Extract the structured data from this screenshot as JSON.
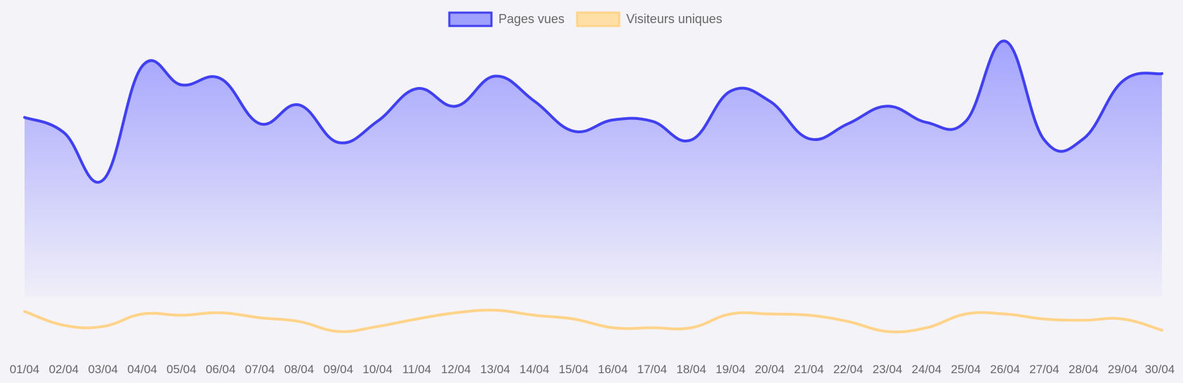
{
  "chart_data": {
    "type": "area",
    "categories": [
      "01/04",
      "02/04",
      "03/04",
      "04/04",
      "05/04",
      "06/04",
      "07/04",
      "08/04",
      "09/04",
      "10/04",
      "11/04",
      "12/04",
      "13/04",
      "14/04",
      "15/04",
      "16/04",
      "17/04",
      "18/04",
      "19/04",
      "20/04",
      "21/04",
      "22/04",
      "23/04",
      "24/04",
      "25/04",
      "26/04",
      "27/04",
      "28/04",
      "29/04",
      "30/04"
    ],
    "series": [
      {
        "name": "Pages vues",
        "color": "#4040f0",
        "fill": true,
        "values": [
          1430,
          1310,
          930,
          1840,
          1690,
          1740,
          1380,
          1530,
          1230,
          1400,
          1660,
          1520,
          1760,
          1560,
          1320,
          1410,
          1400,
          1250,
          1640,
          1560,
          1260,
          1380,
          1520,
          1390,
          1400,
          2040,
          1250,
          1260,
          1720,
          1780
        ]
      },
      {
        "name": "Visiteurs uniques",
        "color": "#ffd48a",
        "fill": false,
        "values": [
          -120,
          -230,
          -240,
          -140,
          -150,
          -130,
          -170,
          -200,
          -280,
          -240,
          -180,
          -130,
          -110,
          -150,
          -180,
          -250,
          -250,
          -250,
          -140,
          -140,
          -150,
          -200,
          -280,
          -250,
          -140,
          -140,
          -180,
          -190,
          -180,
          -270
        ]
      }
    ],
    "ylim": [
      -400,
      2200
    ],
    "grid": false,
    "legend_position": "top"
  }
}
